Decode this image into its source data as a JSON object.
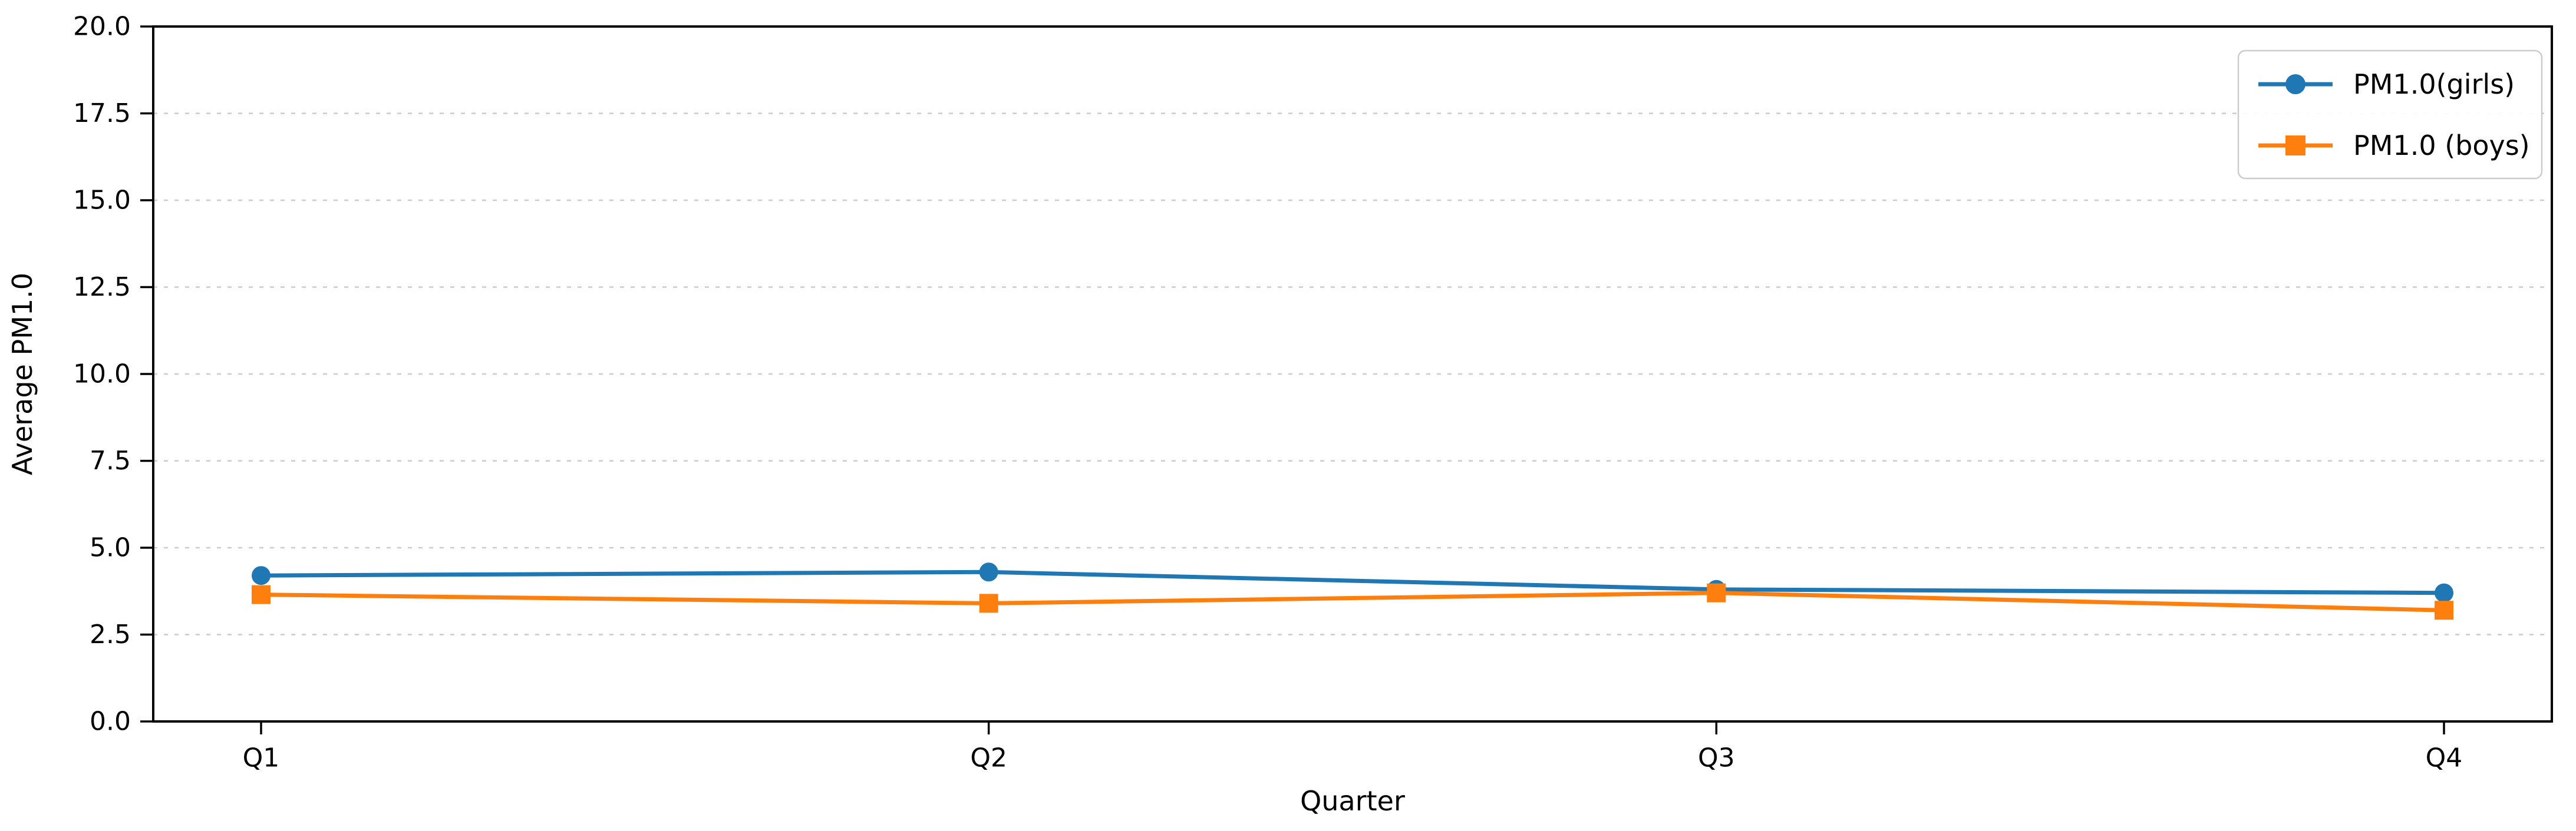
{
  "chart_data": {
    "type": "line",
    "title": "",
    "xlabel": "Quarter",
    "ylabel": "Average PM1.0",
    "categories": [
      "Q1",
      "Q2",
      "Q3",
      "Q4"
    ],
    "series": [
      {
        "name": "PM1.0(girls)",
        "color": "#1f77b4",
        "marker": "circle",
        "values": [
          4.2,
          4.3,
          3.8,
          3.7
        ]
      },
      {
        "name": "PM1.0 (boys)",
        "color": "#ff7f0e",
        "marker": "square",
        "values": [
          3.65,
          3.4,
          3.7,
          3.2
        ]
      }
    ],
    "ylim": [
      0,
      20
    ],
    "ytick_step": 2.5,
    "ytick_labels": [
      "0.0",
      "2.5",
      "5.0",
      "7.5",
      "10.0",
      "12.5",
      "15.0",
      "17.5",
      "20.0"
    ],
    "grid": {
      "axis": "y",
      "style": "dashed",
      "color": "#cccccc"
    },
    "legend": {
      "position": "upper right",
      "frame": true,
      "frame_color": "#cccccc"
    },
    "colors": {
      "spine": "#000000",
      "background": "#ffffff"
    }
  }
}
